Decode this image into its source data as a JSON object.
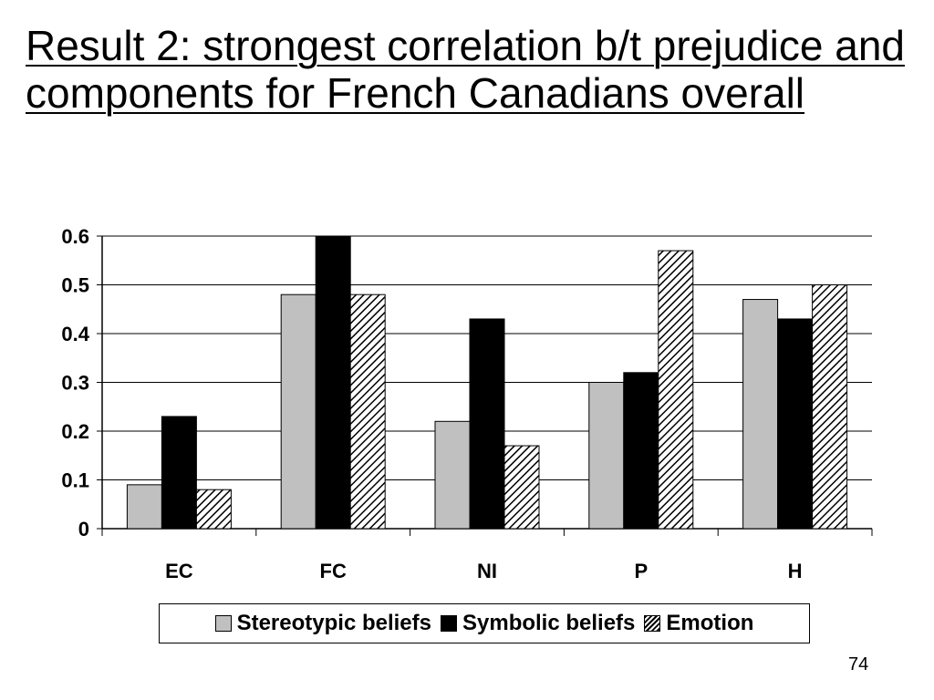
{
  "slide": {
    "title": "Result 2: strongest correlation b/t prejudice and components for French Canadians overall",
    "page_number": "74"
  },
  "chart_data": {
    "type": "bar",
    "categories": [
      "EC",
      "FC",
      "NI",
      "P",
      "H"
    ],
    "series": [
      {
        "name": "Stereotypic beliefs",
        "values": [
          0.09,
          0.48,
          0.22,
          0.3,
          0.47
        ],
        "color": "#c0c0c0",
        "pattern": "solid"
      },
      {
        "name": "Symbolic beliefs",
        "values": [
          0.23,
          0.6,
          0.43,
          0.32,
          0.43
        ],
        "color": "#000000",
        "pattern": "solid"
      },
      {
        "name": "Emotion",
        "values": [
          0.08,
          0.48,
          0.17,
          0.57,
          0.5
        ],
        "color": "#ffffff",
        "pattern": "diagonal-hatch"
      }
    ],
    "title": "",
    "xlabel": "",
    "ylabel": "",
    "ylim": [
      0,
      0.6
    ],
    "yticks": [
      "0",
      "0.1",
      "0.2",
      "0.3",
      "0.4",
      "0.5",
      "0.6"
    ],
    "grid": true,
    "legend_position": "bottom"
  }
}
